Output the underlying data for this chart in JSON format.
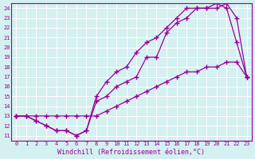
{
  "xlabel": "Windchill (Refroidissement éolien,°C)",
  "ylabel": "",
  "line_color": "#990099",
  "bg_color": "#d4f0f0",
  "xlim": [
    -0.5,
    23.5
  ],
  "ylim": [
    10.5,
    24.5
  ],
  "xticks": [
    0,
    1,
    2,
    3,
    4,
    5,
    6,
    7,
    8,
    9,
    10,
    11,
    12,
    13,
    14,
    15,
    16,
    17,
    18,
    19,
    20,
    21,
    22,
    23
  ],
  "yticks": [
    11,
    12,
    13,
    14,
    15,
    16,
    17,
    18,
    19,
    20,
    21,
    22,
    23,
    24
  ],
  "curve1_x": [
    0,
    1,
    2,
    3,
    4,
    5,
    6,
    7,
    8,
    9,
    10,
    11,
    12,
    13,
    14,
    15,
    16,
    17,
    18,
    19,
    20,
    21,
    22,
    23
  ],
  "curve1_y": [
    13,
    13,
    12.5,
    12,
    11.5,
    11.5,
    11,
    11.5,
    14.5,
    15,
    16,
    16.5,
    17,
    19,
    19,
    21.5,
    22.5,
    23,
    24,
    24,
    24,
    24.5,
    23,
    17
  ],
  "curve2_x": [
    0,
    1,
    2,
    3,
    4,
    5,
    6,
    7,
    8,
    9,
    10,
    11,
    12,
    13,
    14,
    15,
    16,
    17,
    18,
    19,
    20,
    21,
    22,
    23
  ],
  "curve2_y": [
    13,
    13,
    12.5,
    12,
    11.5,
    11.5,
    11,
    11.5,
    15,
    16.5,
    17.5,
    18,
    19.5,
    20.5,
    21,
    22,
    23,
    24,
    24,
    24,
    24.5,
    24,
    20.5,
    17
  ],
  "curve3_x": [
    0,
    2,
    3,
    4,
    5,
    6,
    7,
    8,
    9,
    10,
    11,
    12,
    13,
    14,
    15,
    16,
    17,
    18,
    19,
    20,
    21,
    22,
    23
  ],
  "curve3_y": [
    13,
    13,
    13,
    13,
    13,
    13,
    13,
    13,
    13.5,
    14,
    14.5,
    15,
    15.5,
    16,
    16.5,
    17,
    17.5,
    17.5,
    18,
    18,
    18.5,
    18.5,
    17
  ]
}
